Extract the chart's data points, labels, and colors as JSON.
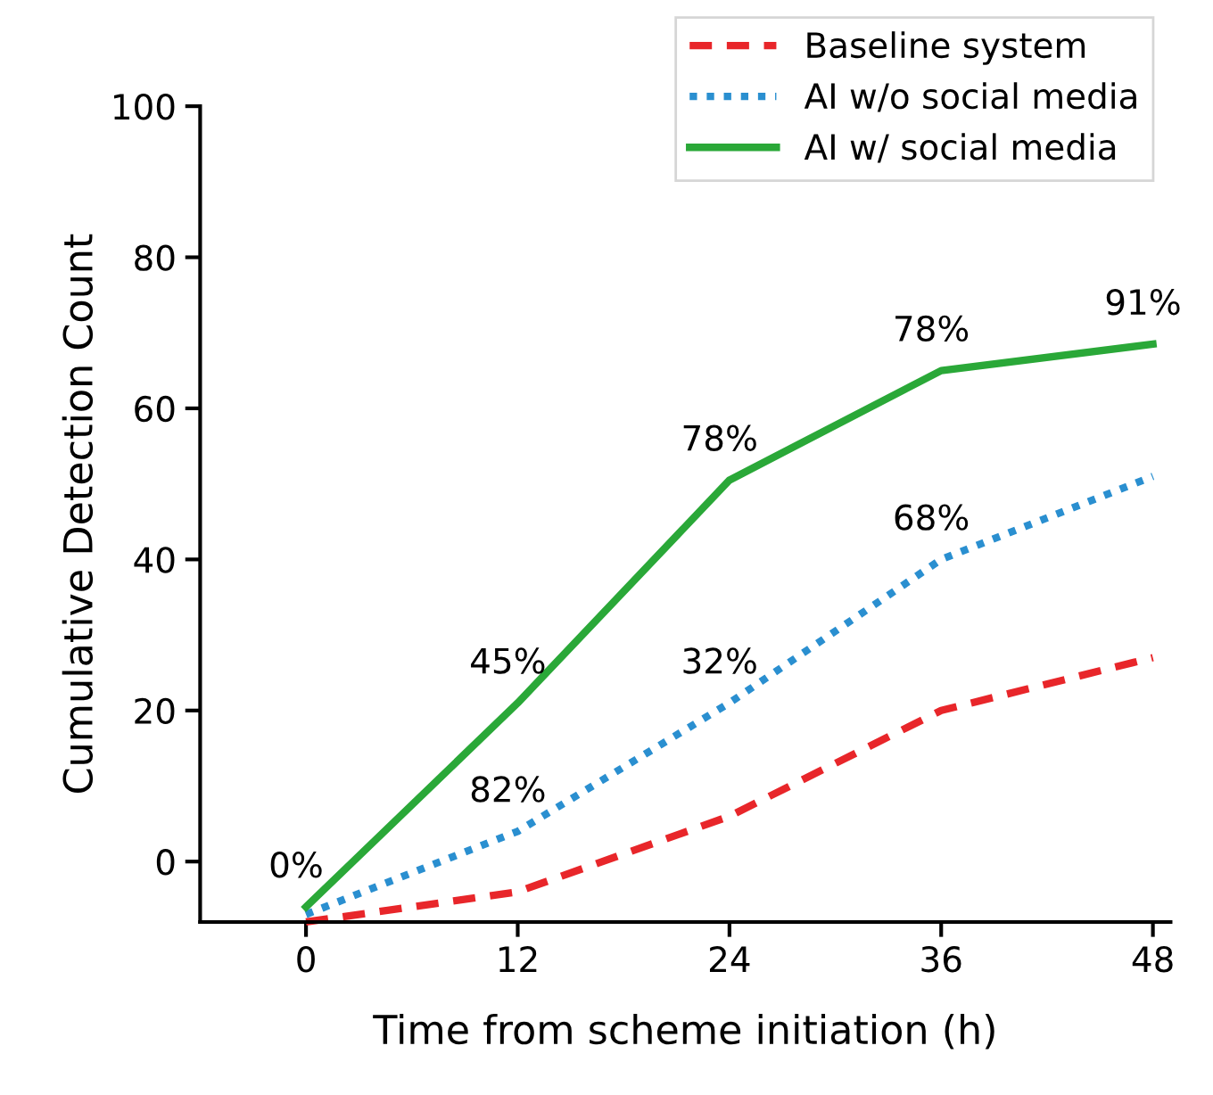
{
  "chart_data": {
    "type": "line",
    "xlabel": "Time from scheme initiation (h)",
    "ylabel": "Cumulative Detection Count",
    "x": [
      0,
      12,
      24,
      36,
      48
    ],
    "series": [
      {
        "name": "Baseline system",
        "color": "#e8262a",
        "line_style": "dashed",
        "values": [
          -8,
          -4,
          6,
          20,
          27
        ]
      },
      {
        "name": "AI w/o social media",
        "color": "#2a8fd0",
        "line_style": "dotted",
        "values": [
          -7,
          4,
          21,
          40,
          51
        ]
      },
      {
        "name": "AI w/ social media",
        "color": "#2aa838",
        "line_style": "solid",
        "values": [
          -6,
          21,
          50.5,
          65,
          68.5
        ]
      }
    ],
    "annotations": [
      {
        "text": "0%",
        "x": 0,
        "y": -6
      },
      {
        "text": "45%",
        "x": 12,
        "y": 21
      },
      {
        "text": "78%",
        "x": 24,
        "y": 50.5
      },
      {
        "text": "78%",
        "x": 36,
        "y": 65
      },
      {
        "text": "91%",
        "x": 48,
        "y": 68.5
      },
      {
        "text": "82%",
        "x": 12,
        "y": 4
      },
      {
        "text": "32%",
        "x": 24,
        "y": 21
      },
      {
        "text": "68%",
        "x": 36,
        "y": 40
      }
    ],
    "xlim": [
      -6,
      49
    ],
    "ylim": [
      -8,
      100
    ],
    "xticks": [
      0,
      12,
      24,
      36,
      48
    ],
    "yticks": [
      0,
      20,
      40,
      60,
      80,
      100
    ],
    "grid": false,
    "legend": "top right",
    "marker": "none"
  }
}
